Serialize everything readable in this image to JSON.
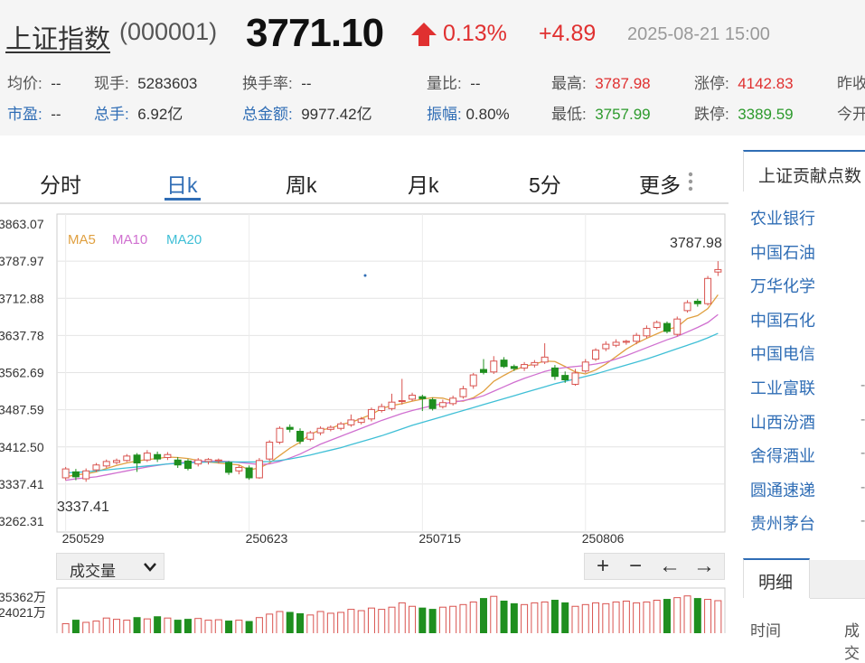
{
  "header": {
    "index_name": "上证指数",
    "index_code": "(000001)",
    "price": "3771.10",
    "change_pct": "0.13%",
    "change_abs": "+4.89",
    "timestamp": "2025-08-21 15:00",
    "stats": [
      {
        "label": "均价:",
        "value": "--"
      },
      {
        "label": "现手:",
        "value": "5283603"
      },
      {
        "label": "换手率:",
        "value": "--"
      },
      {
        "label": "量比:",
        "value": "--"
      },
      {
        "label": "最高:",
        "value": "3787.98"
      },
      {
        "label": "涨停:",
        "value": "4142.83"
      },
      {
        "label": "昨收",
        "value": ""
      },
      {
        "label": "市盈:",
        "value": "--"
      },
      {
        "label": "总手:",
        "value": "6.92亿"
      },
      {
        "label": "总金额:",
        "value": "9977.42亿"
      },
      {
        "label": "振幅:",
        "value": "0.80%"
      },
      {
        "label": "最低:",
        "value": "3757.99"
      },
      {
        "label": "跌停:",
        "value": "3389.59"
      },
      {
        "label": "今开",
        "value": ""
      }
    ],
    "colors": {
      "up": "#e03030",
      "down": "#2c9a2c",
      "link": "#2f6db5"
    }
  },
  "tabs": [
    {
      "label": "分时"
    },
    {
      "label": "日k"
    },
    {
      "label": "周k"
    },
    {
      "label": "月k"
    },
    {
      "label": "5分"
    },
    {
      "label": "更多"
    }
  ],
  "active_tab": "日k",
  "chart_data": {
    "type": "candlestick",
    "y_ticks": [
      "3863.07",
      "3787.97",
      "3712.88",
      "3637.78",
      "3562.69",
      "3487.59",
      "3412.50",
      "3337.41",
      "3262.31"
    ],
    "ylim": [
      3262.31,
      3863.07
    ],
    "x_ticks": [
      "250529",
      "250623",
      "250715",
      "250806"
    ],
    "legend": [
      {
        "name": "MA5",
        "color": "#e0a040"
      },
      {
        "name": "MA10",
        "color": "#d070d0"
      },
      {
        "name": "MA20",
        "color": "#3fbfd6"
      }
    ],
    "max_label": "3787.98",
    "min_label": "3337.41",
    "candles": [
      {
        "o": 3350,
        "c": 3368,
        "h": 3372,
        "l": 3345
      },
      {
        "o": 3362,
        "c": 3352,
        "h": 3368,
        "l": 3345
      },
      {
        "o": 3348,
        "c": 3364,
        "h": 3369,
        "l": 3342
      },
      {
        "o": 3366,
        "c": 3376,
        "h": 3380,
        "l": 3362
      },
      {
        "o": 3374,
        "c": 3383,
        "h": 3387,
        "l": 3370
      },
      {
        "o": 3381,
        "c": 3385,
        "h": 3389,
        "l": 3377
      },
      {
        "o": 3385,
        "c": 3394,
        "h": 3398,
        "l": 3382
      },
      {
        "o": 3396,
        "c": 3380,
        "h": 3400,
        "l": 3362
      },
      {
        "o": 3386,
        "c": 3400,
        "h": 3406,
        "l": 3382
      },
      {
        "o": 3397,
        "c": 3388,
        "h": 3403,
        "l": 3382
      },
      {
        "o": 3391,
        "c": 3397,
        "h": 3402,
        "l": 3386
      },
      {
        "o": 3386,
        "c": 3376,
        "h": 3392,
        "l": 3370
      },
      {
        "o": 3384,
        "c": 3369,
        "h": 3388,
        "l": 3365
      },
      {
        "o": 3378,
        "c": 3386,
        "h": 3390,
        "l": 3373
      },
      {
        "o": 3383,
        "c": 3387,
        "h": 3390,
        "l": 3377
      },
      {
        "o": 3384,
        "c": 3386,
        "h": 3389,
        "l": 3379
      },
      {
        "o": 3381,
        "c": 3361,
        "h": 3384,
        "l": 3356
      },
      {
        "o": 3364,
        "c": 3371,
        "h": 3375,
        "l": 3357
      },
      {
        "o": 3370,
        "c": 3350,
        "h": 3375,
        "l": 3346
      },
      {
        "o": 3350,
        "c": 3385,
        "h": 3390,
        "l": 3348
      },
      {
        "o": 3388,
        "c": 3422,
        "h": 3426,
        "l": 3384
      },
      {
        "o": 3422,
        "c": 3450,
        "h": 3454,
        "l": 3418
      },
      {
        "o": 3452,
        "c": 3448,
        "h": 3458,
        "l": 3442
      },
      {
        "o": 3444,
        "c": 3424,
        "h": 3450,
        "l": 3418
      },
      {
        "o": 3428,
        "c": 3441,
        "h": 3445,
        "l": 3424
      },
      {
        "o": 3441,
        "c": 3450,
        "h": 3454,
        "l": 3436
      },
      {
        "o": 3448,
        "c": 3452,
        "h": 3456,
        "l": 3444
      },
      {
        "o": 3450,
        "c": 3459,
        "h": 3463,
        "l": 3446
      },
      {
        "o": 3457,
        "c": 3467,
        "h": 3478,
        "l": 3453
      },
      {
        "o": 3462,
        "c": 3469,
        "h": 3473,
        "l": 3458
      },
      {
        "o": 3469,
        "c": 3488,
        "h": 3492,
        "l": 3464
      },
      {
        "o": 3486,
        "c": 3494,
        "h": 3500,
        "l": 3482
      },
      {
        "o": 3490,
        "c": 3503,
        "h": 3520,
        "l": 3486
      },
      {
        "o": 3506,
        "c": 3506,
        "h": 3550,
        "l": 3498
      },
      {
        "o": 3509,
        "c": 3517,
        "h": 3522,
        "l": 3505
      },
      {
        "o": 3514,
        "c": 3510,
        "h": 3518,
        "l": 3485
      },
      {
        "o": 3508,
        "c": 3490,
        "h": 3512,
        "l": 3486
      },
      {
        "o": 3494,
        "c": 3502,
        "h": 3508,
        "l": 3490
      },
      {
        "o": 3500,
        "c": 3511,
        "h": 3516,
        "l": 3496
      },
      {
        "o": 3514,
        "c": 3530,
        "h": 3536,
        "l": 3510
      },
      {
        "o": 3536,
        "c": 3558,
        "h": 3562,
        "l": 3530
      },
      {
        "o": 3569,
        "c": 3563,
        "h": 3590,
        "l": 3559
      },
      {
        "o": 3564,
        "c": 3586,
        "h": 3596,
        "l": 3560
      },
      {
        "o": 3588,
        "c": 3575,
        "h": 3594,
        "l": 3572
      },
      {
        "o": 3575,
        "c": 3571,
        "h": 3579,
        "l": 3566
      },
      {
        "o": 3572,
        "c": 3579,
        "h": 3584,
        "l": 3566
      },
      {
        "o": 3578,
        "c": 3583,
        "h": 3588,
        "l": 3573
      },
      {
        "o": 3584,
        "c": 3594,
        "h": 3622,
        "l": 3580
      },
      {
        "o": 3572,
        "c": 3555,
        "h": 3578,
        "l": 3548
      },
      {
        "o": 3557,
        "c": 3548,
        "h": 3565,
        "l": 3542
      },
      {
        "o": 3539,
        "c": 3562,
        "h": 3570,
        "l": 3536
      },
      {
        "o": 3566,
        "c": 3584,
        "h": 3590,
        "l": 3562
      },
      {
        "o": 3590,
        "c": 3608,
        "h": 3612,
        "l": 3586
      },
      {
        "o": 3611,
        "c": 3620,
        "h": 3626,
        "l": 3606
      },
      {
        "o": 3618,
        "c": 3624,
        "h": 3630,
        "l": 3614
      },
      {
        "o": 3624,
        "c": 3626,
        "h": 3629,
        "l": 3619
      },
      {
        "o": 3626,
        "c": 3638,
        "h": 3643,
        "l": 3620
      },
      {
        "o": 3637,
        "c": 3652,
        "h": 3658,
        "l": 3632
      },
      {
        "o": 3654,
        "c": 3664,
        "h": 3668,
        "l": 3650
      },
      {
        "o": 3662,
        "c": 3646,
        "h": 3666,
        "l": 3642
      },
      {
        "o": 3640,
        "c": 3671,
        "h": 3676,
        "l": 3636
      },
      {
        "o": 3688,
        "c": 3704,
        "h": 3709,
        "l": 3684
      },
      {
        "o": 3707,
        "c": 3702,
        "h": 3712,
        "l": 3696
      },
      {
        "o": 3702,
        "c": 3753,
        "h": 3758,
        "l": 3698
      },
      {
        "o": 3766,
        "c": 3771,
        "h": 3788,
        "l": 3758
      }
    ],
    "ma5": [
      3352,
      3356,
      3358,
      3362,
      3369,
      3375,
      3380,
      3384,
      3387,
      3389,
      3392,
      3391,
      3389,
      3385,
      3382,
      3380,
      3378,
      3376,
      3366,
      3370,
      3380,
      3395,
      3410,
      3422,
      3438,
      3447,
      3450,
      3458,
      3462,
      3470,
      3478,
      3490,
      3496,
      3500,
      3505,
      3509,
      3512,
      3511,
      3505,
      3505,
      3512,
      3525,
      3545,
      3557,
      3568,
      3575,
      3580,
      3586,
      3585,
      3575,
      3564,
      3560,
      3568,
      3580,
      3595,
      3610,
      3622,
      3632,
      3641,
      3650,
      3655,
      3672,
      3678,
      3692,
      3720
    ],
    "ma10": [
      3345,
      3348,
      3350,
      3352,
      3356,
      3360,
      3364,
      3368,
      3372,
      3375,
      3378,
      3380,
      3382,
      3383,
      3384,
      3384,
      3383,
      3381,
      3379,
      3377,
      3378,
      3383,
      3390,
      3398,
      3408,
      3418,
      3426,
      3434,
      3442,
      3450,
      3458,
      3466,
      3473,
      3480,
      3486,
      3491,
      3496,
      3500,
      3503,
      3506,
      3510,
      3516,
      3525,
      3534,
      3543,
      3551,
      3558,
      3565,
      3570,
      3573,
      3575,
      3577,
      3580,
      3584,
      3590,
      3597,
      3605,
      3613,
      3621,
      3629,
      3636,
      3645,
      3654,
      3664,
      3680
    ],
    "ma20": [
      3360,
      3361,
      3362,
      3364,
      3366,
      3368,
      3370,
      3372,
      3374,
      3376,
      3378,
      3379,
      3380,
      3381,
      3382,
      3382,
      3382,
      3382,
      3382,
      3382,
      3383,
      3385,
      3388,
      3392,
      3396,
      3401,
      3406,
      3411,
      3417,
      3423,
      3429,
      3435,
      3442,
      3449,
      3456,
      3462,
      3468,
      3474,
      3480,
      3486,
      3492,
      3498,
      3504,
      3510,
      3516,
      3522,
      3528,
      3534,
      3540,
      3545,
      3550,
      3555,
      3560,
      3566,
      3572,
      3578,
      3584,
      3590,
      3597,
      3604,
      3611,
      3618,
      3625,
      3633,
      3642
    ]
  },
  "volume": {
    "select_label": "成交量",
    "y_ticks": [
      "35362万",
      "24021万"
    ],
    "bars": [
      0.22,
      0.3,
      0.25,
      0.28,
      0.35,
      0.32,
      0.3,
      0.36,
      0.33,
      0.38,
      0.35,
      0.3,
      0.32,
      0.34,
      0.3,
      0.31,
      0.28,
      0.3,
      0.27,
      0.36,
      0.44,
      0.5,
      0.48,
      0.45,
      0.42,
      0.5,
      0.46,
      0.48,
      0.55,
      0.52,
      0.58,
      0.55,
      0.6,
      0.7,
      0.62,
      0.58,
      0.55,
      0.6,
      0.62,
      0.66,
      0.72,
      0.8,
      0.85,
      0.74,
      0.68,
      0.66,
      0.7,
      0.72,
      0.76,
      0.7,
      0.62,
      0.66,
      0.7,
      0.68,
      0.72,
      0.74,
      0.7,
      0.72,
      0.76,
      0.78,
      0.82,
      0.86,
      0.8,
      0.78,
      0.75
    ]
  },
  "zoom": {
    "plus": "+",
    "minus": "−",
    "left": "←",
    "right": "→"
  },
  "sidebar": {
    "title": "上证贡献点数",
    "items": [
      "农业银行",
      "中国石油",
      "万华化学",
      "中国石化",
      "中国电信",
      "工业富联",
      "山西汾酒",
      "舍得酒业",
      "圆通速递",
      "贵州茅台"
    ],
    "detail_tab": "明细",
    "col_time": "时间",
    "col_volume": "成交"
  }
}
